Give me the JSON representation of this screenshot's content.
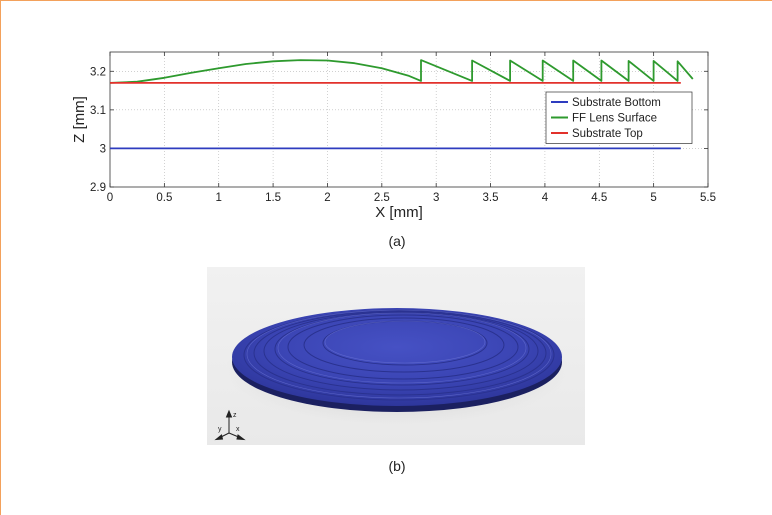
{
  "figure": {
    "caption_a": "(a)",
    "caption_b": "(b)",
    "frame_color": "#f3a15b"
  },
  "chart_data": {
    "type": "line",
    "xlabel": "X [mm]",
    "ylabel": "Z [mm]",
    "xlim": [
      0,
      5.5
    ],
    "ylim": [
      2.9,
      3.25
    ],
    "xticks": [
      0,
      0.5,
      1,
      1.5,
      2,
      2.5,
      3,
      3.5,
      4,
      4.5,
      5,
      5.5
    ],
    "xtick_labels": [
      "0",
      "0.5",
      "1",
      "1.5",
      "2",
      "2.5",
      "3",
      "3.5",
      "4",
      "4.5",
      "5",
      "5.5"
    ],
    "yticks": [
      2.9,
      3,
      3.1,
      3.2
    ],
    "ytick_labels": [
      "2.9",
      "3",
      "3.1",
      "3.2"
    ],
    "grid": true,
    "legend_position": "right",
    "series": [
      {
        "name": "Substrate Bottom",
        "color": "#2e3cbf",
        "x": [
          0,
          5.25
        ],
        "y": [
          3.0,
          3.0
        ]
      },
      {
        "name": "FF Lens Surface",
        "color": "#2e9a2e",
        "x": [
          0,
          0.25,
          0.5,
          0.75,
          1.0,
          1.25,
          1.5,
          1.75,
          2.0,
          2.25,
          2.5,
          2.75,
          2.86,
          2.86,
          3.33,
          3.33,
          3.68,
          3.68,
          3.98,
          3.98,
          4.26,
          4.26,
          4.52,
          4.52,
          4.77,
          4.77,
          5.0,
          5.0,
          5.22,
          5.22,
          5.36
        ],
        "y": [
          3.17,
          3.173,
          3.183,
          3.196,
          3.208,
          3.219,
          3.226,
          3.229,
          3.228,
          3.221,
          3.208,
          3.188,
          3.175,
          3.229,
          3.175,
          3.228,
          3.175,
          3.228,
          3.175,
          3.228,
          3.175,
          3.228,
          3.175,
          3.228,
          3.175,
          3.227,
          3.175,
          3.227,
          3.175,
          3.226,
          3.18
        ]
      },
      {
        "name": "Substrate Top",
        "color": "#e2312b",
        "x": [
          0,
          5.25
        ],
        "y": [
          3.17,
          3.17
        ]
      }
    ]
  },
  "render": {
    "axis_labels": [
      "z",
      "y",
      "x"
    ],
    "disc_color": "#3c46b4"
  }
}
